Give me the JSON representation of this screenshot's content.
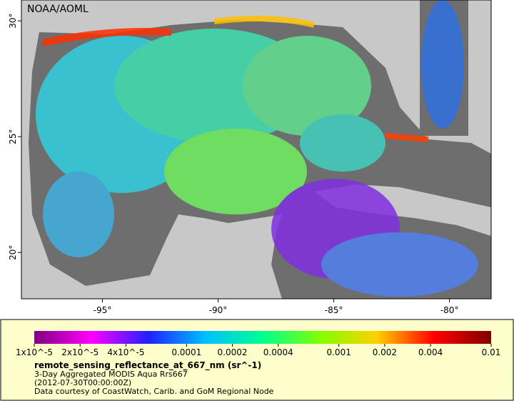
{
  "map": {
    "label": "NOAA/AOML",
    "lonlim": [
      -98.5,
      -78.2
    ],
    "latlim": [
      18,
      30.9
    ],
    "lon_ticks": [
      {
        "value": -95,
        "label": "-95°"
      },
      {
        "value": -90,
        "label": "-90°"
      },
      {
        "value": -85,
        "label": "-85°"
      },
      {
        "value": -80,
        "label": "-80°"
      }
    ],
    "lat_ticks": [
      {
        "value": 20,
        "label": "20°"
      },
      {
        "value": 25,
        "label": "25°"
      },
      {
        "value": 30,
        "label": "30°"
      }
    ]
  },
  "colorbar": {
    "scale": "log",
    "range": [
      1e-05,
      0.01
    ],
    "colors": [
      "#800080",
      "#ff00ff",
      "#2020ff",
      "#00c0ff",
      "#00ff90",
      "#80ff00",
      "#ffd000",
      "#ff0000",
      "#800000"
    ],
    "ticks": [
      {
        "value": 1e-05,
        "label": "1x10^-5"
      },
      {
        "value": 2e-05,
        "label": "2x10^-5"
      },
      {
        "value": 4e-05,
        "label": "4x10^-5"
      },
      0.0001,
      0.0002,
      0.0004,
      0.001,
      0.002,
      0.004,
      0.01
    ]
  },
  "caption": {
    "variable": "remote_sensing_reflectance_at_667_nm (sr^-1)",
    "lines": [
      "3-Day Aggregated MODIS Aqua Rrs667",
      "(2012-07-30T00:00:00Z)",
      "Data courtesy of CoastWatch, Carib. and GoM Regional Node"
    ]
  }
}
